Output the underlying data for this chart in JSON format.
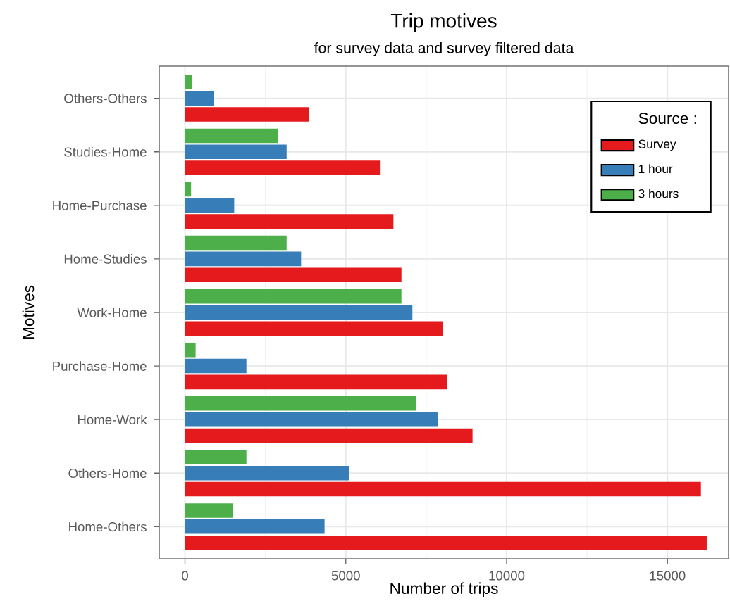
{
  "chart_data": {
    "type": "bar",
    "orientation": "horizontal",
    "title": "Trip motives",
    "subtitle": "for survey data and survey filtered data",
    "xlabel": "Number of trips",
    "ylabel": "Motives",
    "legend_title": "Source :",
    "categories": [
      "Others-Others",
      "Studies-Home",
      "Home-Purchase",
      "Home-Studies",
      "Work-Home",
      "Purchase-Home",
      "Home-Work",
      "Others-Home",
      "Home-Others"
    ],
    "series": [
      {
        "name": "Survey",
        "color": "#e41a1c",
        "values": [
          3860,
          6060,
          6480,
          6730,
          8010,
          8150,
          8940,
          16040,
          16220
        ]
      },
      {
        "name": "1 hour",
        "color": "#377eb8",
        "values": [
          890,
          3160,
          1530,
          3610,
          7070,
          1910,
          7860,
          5100,
          4340
        ]
      },
      {
        "name": "3 hours",
        "color": "#4daf4a",
        "values": [
          220,
          2880,
          190,
          3160,
          6730,
          330,
          7180,
          1910,
          1480
        ]
      }
    ],
    "xlim": [
      -800,
      16900
    ],
    "xticks": [
      0,
      5000,
      10000,
      15000
    ],
    "grid": true,
    "legend": "top right"
  }
}
